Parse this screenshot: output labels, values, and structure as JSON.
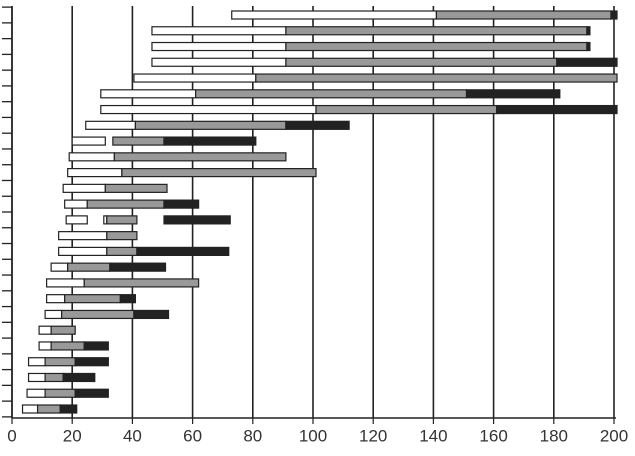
{
  "chart_data": {
    "type": "floating-bar",
    "xlim": [
      0,
      200
    ],
    "xticks": [
      0,
      20,
      40,
      60,
      80,
      100,
      120,
      140,
      160,
      180,
      200
    ],
    "grid": true,
    "series": [
      {
        "color": "#ffffff",
        "ranges": [
          [
            [
              73,
              141
            ]
          ],
          [
            [
              46.5,
              91
            ]
          ],
          [
            [
              46.5,
              91
            ]
          ],
          [
            [
              46.5,
              91
            ]
          ],
          [
            [
              40.5,
              81
            ]
          ],
          [
            [
              29.5,
              61
            ]
          ],
          [
            [
              29.5,
              101
            ]
          ],
          [
            [
              24.5,
              41
            ]
          ],
          [
            [
              20,
              31
            ]
          ],
          [
            [
              19,
              34
            ]
          ],
          [
            [
              18.5,
              36.5
            ]
          ],
          [
            [
              17,
              31
            ]
          ],
          [
            [
              17.5,
              25
            ]
          ],
          [
            [
              18,
              25
            ],
            [
              30.5,
              31.5
            ]
          ],
          [
            [
              15.5,
              31.5
            ]
          ],
          [
            [
              15.5,
              31.5
            ]
          ],
          [
            [
              13,
              18.5
            ]
          ],
          [
            [
              11.5,
              24
            ]
          ],
          [
            [
              11.5,
              17.5
            ]
          ],
          [
            [
              11,
              16.5
            ]
          ],
          [
            [
              9,
              13
            ]
          ],
          [
            [
              9,
              13
            ]
          ],
          [
            [
              5.5,
              11
            ]
          ],
          [
            [
              5.5,
              11
            ]
          ],
          [
            [
              5,
              11
            ]
          ],
          [
            [
              3.5,
              8.5
            ]
          ]
        ]
      },
      {
        "color": "#999999",
        "ranges": [
          [
            [
              141,
              199
            ]
          ],
          [
            [
              91,
              191
            ]
          ],
          [
            [
              91,
              191
            ]
          ],
          [
            [
              91,
              181
            ]
          ],
          [
            [
              81,
              201
            ]
          ],
          [
            [
              61,
              151
            ]
          ],
          [
            [
              101,
              161
            ]
          ],
          [
            [
              41,
              91
            ]
          ],
          [
            [
              33.5,
              50.5
            ]
          ],
          [
            [
              34,
              91
            ]
          ],
          [
            [
              36.5,
              101
            ]
          ],
          [
            [
              31,
              51.5
            ]
          ],
          [
            [
              25,
              50.5
            ]
          ],
          [
            [
              31.5,
              41.5
            ]
          ],
          [
            [
              31.5,
              41.5
            ]
          ],
          [
            [
              31.5,
              41.5
            ]
          ],
          [
            [
              18.5,
              32.5
            ]
          ],
          [
            [
              24,
              62
            ]
          ],
          [
            [
              17.5,
              36
            ]
          ],
          [
            [
              16.5,
              40.5
            ]
          ],
          [
            [
              13,
              21
            ]
          ],
          [
            [
              13,
              24
            ]
          ],
          [
            [
              11,
              21
            ]
          ],
          [
            [
              11,
              17
            ]
          ],
          [
            [
              11,
              21
            ]
          ],
          [
            [
              8.5,
              16
            ]
          ]
        ]
      },
      {
        "color": "#222222",
        "ranges": [
          [
            [
              199,
              201
            ]
          ],
          [
            [
              191,
              192
            ]
          ],
          [
            [
              191,
              192
            ]
          ],
          [
            [
              181,
              201
            ]
          ],
          [],
          [
            [
              151,
              182
            ]
          ],
          [
            [
              161,
              201
            ]
          ],
          [
            [
              91,
              112
            ]
          ],
          [
            [
              50.5,
              81
            ]
          ],
          [],
          [],
          [],
          [
            [
              50.5,
              62
            ]
          ],
          [
            [
              50.5,
              72.5
            ]
          ],
          [],
          [
            [
              41.5,
              72
            ]
          ],
          [
            [
              32.5,
              51
            ]
          ],
          [],
          [
            [
              36,
              41
            ]
          ],
          [
            [
              40.5,
              52
            ]
          ],
          [],
          [
            [
              24,
              32
            ]
          ],
          [
            [
              21,
              32
            ]
          ],
          [
            [
              17,
              27.5
            ]
          ],
          [
            [
              21,
              32
            ]
          ],
          [
            [
              16,
              21.5
            ]
          ]
        ]
      }
    ]
  }
}
